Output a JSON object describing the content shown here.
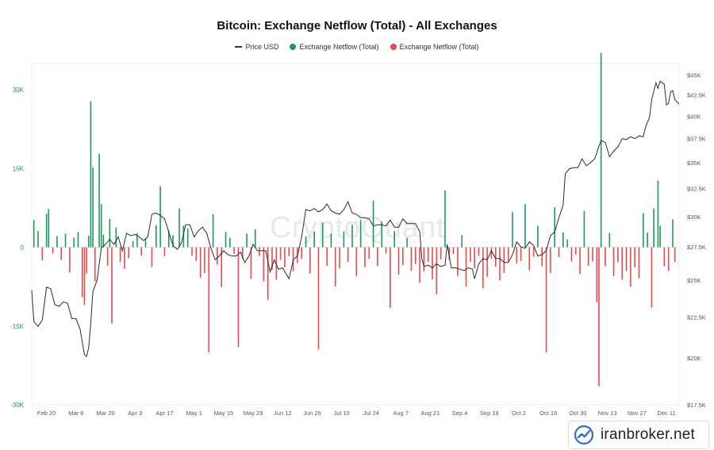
{
  "chart_data": {
    "type": "bar+line",
    "title": "Bitcoin: Exchange Netflow (Total) - All Exchanges",
    "legend": [
      {
        "name": "Price USD",
        "color": "#333333",
        "kind": "line"
      },
      {
        "name": "Exchange Netflow (Total)",
        "color": "#1a9a5c",
        "kind": "dot"
      },
      {
        "name": "Exchange Netflow (Total)",
        "color": "#e84a4a",
        "kind": "dot"
      }
    ],
    "x_start": "2023-02-13",
    "x_end": "2023-12-17",
    "x_ticks": [
      "Feb 20",
      "Mar 6",
      "Mar 20",
      "Apr 3",
      "Apr 17",
      "May 1",
      "May 15",
      "May 29",
      "Jun 12",
      "Jun 26",
      "Jul 10",
      "Jul 24",
      "Aug 7",
      "Aug 21",
      "Sep 4",
      "Sep 18",
      "Oct 2",
      "Oct 16",
      "Oct 30",
      "Nov 13",
      "Nov 27",
      "Dec 11"
    ],
    "y_left": {
      "range": [
        -30000,
        35000
      ],
      "ticks": [
        -30000,
        -15000,
        0,
        15000,
        30000
      ],
      "tick_labels": [
        "-30K",
        "-15K",
        "0",
        "15K",
        "30K"
      ],
      "color": "#1a9a5c"
    },
    "y_right": {
      "scale": "log",
      "range": [
        17500,
        46500
      ],
      "ticks": [
        17500,
        20000,
        22500,
        25000,
        27500,
        30000,
        32500,
        35000,
        37500,
        40000,
        42500,
        45000
      ],
      "tick_labels": [
        "$17.5K",
        "$20K",
        "$22.5K",
        "$25K",
        "$27.5K",
        "$30K",
        "$32.5K",
        "$35K",
        "$37.5K",
        "$40K",
        "$42.5K",
        "$45K"
      ]
    },
    "netflow": [
      [
        "2023-02-14",
        5200
      ],
      [
        "2023-02-16",
        3100
      ],
      [
        "2023-02-18",
        -2500
      ],
      [
        "2023-02-20",
        6400
      ],
      [
        "2023-02-21",
        7300
      ],
      [
        "2023-02-23",
        -1200
      ],
      [
        "2023-02-25",
        2100
      ],
      [
        "2023-02-27",
        -2400
      ],
      [
        "2023-03-01",
        2600
      ],
      [
        "2023-03-03",
        -4800
      ],
      [
        "2023-03-05",
        1800
      ],
      [
        "2023-03-07",
        2900
      ],
      [
        "2023-03-09",
        -9500
      ],
      [
        "2023-03-10",
        -11000
      ],
      [
        "2023-03-11",
        -5000
      ],
      [
        "2023-03-12",
        2200
      ],
      [
        "2023-03-13",
        27800
      ],
      [
        "2023-03-14",
        15200
      ],
      [
        "2023-03-15",
        -6500
      ],
      [
        "2023-03-17",
        17800
      ],
      [
        "2023-03-18",
        8200
      ],
      [
        "2023-03-19",
        2400
      ],
      [
        "2023-03-21",
        -3500
      ],
      [
        "2023-03-22",
        5400
      ],
      [
        "2023-03-23",
        -14500
      ],
      [
        "2023-03-25",
        3800
      ],
      [
        "2023-03-27",
        -2800
      ],
      [
        "2023-03-29",
        -4100
      ],
      [
        "2023-03-31",
        -2100
      ],
      [
        "2023-04-02",
        1200
      ],
      [
        "2023-04-04",
        2700
      ],
      [
        "2023-04-06",
        -1600
      ],
      [
        "2023-04-08",
        1600
      ],
      [
        "2023-04-11",
        -3800
      ],
      [
        "2023-04-13",
        4200
      ],
      [
        "2023-04-15",
        11600
      ],
      [
        "2023-04-17",
        -1700
      ],
      [
        "2023-04-19",
        3200
      ],
      [
        "2023-04-21",
        2300
      ],
      [
        "2023-04-24",
        7400
      ],
      [
        "2023-04-26",
        4100
      ],
      [
        "2023-04-28",
        3600
      ],
      [
        "2023-04-30",
        -1600
      ],
      [
        "2023-05-02",
        -2600
      ],
      [
        "2023-05-04",
        -5800
      ],
      [
        "2023-05-06",
        -4900
      ],
      [
        "2023-05-08",
        -20000
      ],
      [
        "2023-05-10",
        6300
      ],
      [
        "2023-05-12",
        -3300
      ],
      [
        "2023-05-14",
        -7600
      ],
      [
        "2023-05-16",
        2900
      ],
      [
        "2023-05-18",
        1800
      ],
      [
        "2023-05-20",
        -1300
      ],
      [
        "2023-05-22",
        -19000
      ],
      [
        "2023-05-24",
        -2200
      ],
      [
        "2023-05-26",
        2600
      ],
      [
        "2023-05-28",
        -6000
      ],
      [
        "2023-05-30",
        3400
      ],
      [
        "2023-06-01",
        -1700
      ],
      [
        "2023-06-03",
        -6500
      ],
      [
        "2023-06-05",
        -10000
      ],
      [
        "2023-06-07",
        -4300
      ],
      [
        "2023-06-09",
        -6200
      ],
      [
        "2023-06-11",
        -2400
      ],
      [
        "2023-06-13",
        -3800
      ],
      [
        "2023-06-15",
        -1700
      ],
      [
        "2023-06-17",
        -4600
      ],
      [
        "2023-06-19",
        -3000
      ],
      [
        "2023-06-21",
        -2200
      ],
      [
        "2023-06-23",
        2100
      ],
      [
        "2023-06-25",
        -5000
      ],
      [
        "2023-06-27",
        3000
      ],
      [
        "2023-06-29",
        -19500
      ],
      [
        "2023-07-01",
        4700
      ],
      [
        "2023-07-03",
        -3500
      ],
      [
        "2023-07-05",
        2600
      ],
      [
        "2023-07-07",
        -7500
      ],
      [
        "2023-07-09",
        -4000
      ],
      [
        "2023-07-11",
        3000
      ],
      [
        "2023-07-13",
        -2800
      ],
      [
        "2023-07-15",
        4300
      ],
      [
        "2023-07-17",
        -5500
      ],
      [
        "2023-07-19",
        5200
      ],
      [
        "2023-07-21",
        -3800
      ],
      [
        "2023-07-23",
        -2200
      ],
      [
        "2023-07-25",
        8900
      ],
      [
        "2023-07-27",
        -3600
      ],
      [
        "2023-07-29",
        4900
      ],
      [
        "2023-07-31",
        -1200
      ],
      [
        "2023-08-02",
        -11500
      ],
      [
        "2023-08-04",
        3100
      ],
      [
        "2023-08-06",
        -5200
      ],
      [
        "2023-08-08",
        -3400
      ],
      [
        "2023-08-10",
        1800
      ],
      [
        "2023-08-12",
        -4500
      ],
      [
        "2023-08-14",
        -3200
      ],
      [
        "2023-08-16",
        -6800
      ],
      [
        "2023-08-18",
        -4600
      ],
      [
        "2023-08-20",
        -2800
      ],
      [
        "2023-08-22",
        -6100
      ],
      [
        "2023-08-24",
        -9000
      ],
      [
        "2023-08-26",
        -2300
      ],
      [
        "2023-08-28",
        10800
      ],
      [
        "2023-08-30",
        -2400
      ],
      [
        "2023-09-01",
        -1300
      ],
      [
        "2023-09-03",
        -5500
      ],
      [
        "2023-09-05",
        2300
      ],
      [
        "2023-09-07",
        -7500
      ],
      [
        "2023-09-09",
        -2800
      ],
      [
        "2023-09-11",
        -4000
      ],
      [
        "2023-09-13",
        -1600
      ],
      [
        "2023-09-15",
        -7800
      ],
      [
        "2023-09-17",
        -5600
      ],
      [
        "2023-09-19",
        -2200
      ],
      [
        "2023-09-21",
        -3700
      ],
      [
        "2023-09-23",
        -6300
      ],
      [
        "2023-09-25",
        -4900
      ],
      [
        "2023-09-27",
        -2700
      ],
      [
        "2023-09-29",
        6700
      ],
      [
        "2023-10-01",
        -3100
      ],
      [
        "2023-10-03",
        -2600
      ],
      [
        "2023-10-05",
        8200
      ],
      [
        "2023-10-07",
        -4400
      ],
      [
        "2023-10-09",
        -1800
      ],
      [
        "2023-10-11",
        4100
      ],
      [
        "2023-10-13",
        -3600
      ],
      [
        "2023-10-15",
        -20000
      ],
      [
        "2023-10-17",
        -4900
      ],
      [
        "2023-10-19",
        7600
      ],
      [
        "2023-10-21",
        -1900
      ],
      [
        "2023-10-23",
        2800
      ],
      [
        "2023-10-25",
        1500
      ],
      [
        "2023-10-27",
        -2700
      ],
      [
        "2023-10-29",
        -1400
      ],
      [
        "2023-10-31",
        -5100
      ],
      [
        "2023-11-02",
        6900
      ],
      [
        "2023-11-04",
        -3500
      ],
      [
        "2023-11-06",
        -2700
      ],
      [
        "2023-11-08",
        -10500
      ],
      [
        "2023-11-09",
        -26500
      ],
      [
        "2023-11-10",
        37000
      ],
      [
        "2023-11-12",
        -3600
      ],
      [
        "2023-11-14",
        2700
      ],
      [
        "2023-11-16",
        -5500
      ],
      [
        "2023-11-18",
        -2900
      ],
      [
        "2023-11-20",
        -6200
      ],
      [
        "2023-11-22",
        -4500
      ],
      [
        "2023-11-24",
        -7500
      ],
      [
        "2023-11-26",
        -3800
      ],
      [
        "2023-11-28",
        -5900
      ],
      [
        "2023-11-30",
        6500
      ],
      [
        "2023-12-02",
        2800
      ],
      [
        "2023-12-04",
        -11500
      ],
      [
        "2023-12-05",
        7400
      ],
      [
        "2023-12-07",
        12700
      ],
      [
        "2023-12-08",
        4100
      ],
      [
        "2023-12-10",
        -3600
      ],
      [
        "2023-12-12",
        -4500
      ],
      [
        "2023-12-14",
        5300
      ],
      [
        "2023-12-15",
        -2800
      ]
    ],
    "price": [
      [
        "2023-02-13",
        24300
      ],
      [
        "2023-02-14",
        22200
      ],
      [
        "2023-02-16",
        21900
      ],
      [
        "2023-02-18",
        22300
      ],
      [
        "2023-02-20",
        24500
      ],
      [
        "2023-02-22",
        24400
      ],
      [
        "2023-02-24",
        23300
      ],
      [
        "2023-02-26",
        23200
      ],
      [
        "2023-02-28",
        23500
      ],
      [
        "2023-03-02",
        23400
      ],
      [
        "2023-03-04",
        22400
      ],
      [
        "2023-03-06",
        22400
      ],
      [
        "2023-03-08",
        21700
      ],
      [
        "2023-03-10",
        20200
      ],
      [
        "2023-03-11",
        20100
      ],
      [
        "2023-03-12",
        20600
      ],
      [
        "2023-03-13",
        22100
      ],
      [
        "2023-03-14",
        24200
      ],
      [
        "2023-03-16",
        25000
      ],
      [
        "2023-03-18",
        27400
      ],
      [
        "2023-03-20",
        27700
      ],
      [
        "2023-03-22",
        28100
      ],
      [
        "2023-03-24",
        27700
      ],
      [
        "2023-03-26",
        28300
      ],
      [
        "2023-03-28",
        27200
      ],
      [
        "2023-03-30",
        28600
      ],
      [
        "2023-04-01",
        28400
      ],
      [
        "2023-04-03",
        28500
      ],
      [
        "2023-04-05",
        28300
      ],
      [
        "2023-04-07",
        28000
      ],
      [
        "2023-04-09",
        28300
      ],
      [
        "2023-04-11",
        30200
      ],
      [
        "2023-04-13",
        30300
      ],
      [
        "2023-04-15",
        30100
      ],
      [
        "2023-04-17",
        29800
      ],
      [
        "2023-04-19",
        28700
      ],
      [
        "2023-04-21",
        27600
      ],
      [
        "2023-04-23",
        27300
      ],
      [
        "2023-04-25",
        27800
      ],
      [
        "2023-04-27",
        29300
      ],
      [
        "2023-04-29",
        29300
      ],
      [
        "2023-05-01",
        28300
      ],
      [
        "2023-05-03",
        28800
      ],
      [
        "2023-05-05",
        29100
      ],
      [
        "2023-05-07",
        28600
      ],
      [
        "2023-05-09",
        27400
      ],
      [
        "2023-05-11",
        26500
      ],
      [
        "2023-05-13",
        26800
      ],
      [
        "2023-05-15",
        27200
      ],
      [
        "2023-05-17",
        26900
      ],
      [
        "2023-05-19",
        26800
      ],
      [
        "2023-05-21",
        26800
      ],
      [
        "2023-05-23",
        27100
      ],
      [
        "2023-05-25",
        26300
      ],
      [
        "2023-05-27",
        26800
      ],
      [
        "2023-05-29",
        27700
      ],
      [
        "2023-05-31",
        27200
      ],
      [
        "2023-06-02",
        27200
      ],
      [
        "2023-06-04",
        27200
      ],
      [
        "2023-06-06",
        25600
      ],
      [
        "2023-06-08",
        26500
      ],
      [
        "2023-06-10",
        25800
      ],
      [
        "2023-06-12",
        25900
      ],
      [
        "2023-06-15",
        25100
      ],
      [
        "2023-06-17",
        26500
      ],
      [
        "2023-06-19",
        26800
      ],
      [
        "2023-06-21",
        28300
      ],
      [
        "2023-06-23",
        30600
      ],
      [
        "2023-06-25",
        30500
      ],
      [
        "2023-06-27",
        30700
      ],
      [
        "2023-06-29",
        30400
      ],
      [
        "2023-07-01",
        30600
      ],
      [
        "2023-07-03",
        31100
      ],
      [
        "2023-07-05",
        30500
      ],
      [
        "2023-07-07",
        30300
      ],
      [
        "2023-07-09",
        30200
      ],
      [
        "2023-07-11",
        30600
      ],
      [
        "2023-07-13",
        31300
      ],
      [
        "2023-07-15",
        30300
      ],
      [
        "2023-07-17",
        30200
      ],
      [
        "2023-07-19",
        29900
      ],
      [
        "2023-07-21",
        29900
      ],
      [
        "2023-07-23",
        29800
      ],
      [
        "2023-07-25",
        29200
      ],
      [
        "2023-07-27",
        29300
      ],
      [
        "2023-07-29",
        29300
      ],
      [
        "2023-07-31",
        29200
      ],
      [
        "2023-08-02",
        29700
      ],
      [
        "2023-08-04",
        29100
      ],
      [
        "2023-08-06",
        29100
      ],
      [
        "2023-08-08",
        29800
      ],
      [
        "2023-08-10",
        29400
      ],
      [
        "2023-08-12",
        29400
      ],
      [
        "2023-08-14",
        29400
      ],
      [
        "2023-08-16",
        28700
      ],
      [
        "2023-08-17",
        26600
      ],
      [
        "2023-08-18",
        26000
      ],
      [
        "2023-08-20",
        26100
      ],
      [
        "2023-08-22",
        25900
      ],
      [
        "2023-08-24",
        26200
      ],
      [
        "2023-08-26",
        26000
      ],
      [
        "2023-08-28",
        26100
      ],
      [
        "2023-08-29",
        27700
      ],
      [
        "2023-08-31",
        25900
      ],
      [
        "2023-09-02",
        25900
      ],
      [
        "2023-09-04",
        25800
      ],
      [
        "2023-09-06",
        25700
      ],
      [
        "2023-09-08",
        25900
      ],
      [
        "2023-09-10",
        25800
      ],
      [
        "2023-09-11",
        25100
      ],
      [
        "2023-09-13",
        26200
      ],
      [
        "2023-09-15",
        26600
      ],
      [
        "2023-09-17",
        26500
      ],
      [
        "2023-09-19",
        27200
      ],
      [
        "2023-09-21",
        26600
      ],
      [
        "2023-09-23",
        26600
      ],
      [
        "2023-09-25",
        26300
      ],
      [
        "2023-09-27",
        26300
      ],
      [
        "2023-09-29",
        26900
      ],
      [
        "2023-10-01",
        27900
      ],
      [
        "2023-10-03",
        27500
      ],
      [
        "2023-10-05",
        27400
      ],
      [
        "2023-10-07",
        27900
      ],
      [
        "2023-10-09",
        27600
      ],
      [
        "2023-10-11",
        26800
      ],
      [
        "2023-10-13",
        26900
      ],
      [
        "2023-10-15",
        27200
      ],
      [
        "2023-10-17",
        28400
      ],
      [
        "2023-10-19",
        28700
      ],
      [
        "2023-10-21",
        29900
      ],
      [
        "2023-10-23",
        31000
      ],
      [
        "2023-10-24",
        33900
      ],
      [
        "2023-10-26",
        34400
      ],
      [
        "2023-10-28",
        34500
      ],
      [
        "2023-10-30",
        34500
      ],
      [
        "2023-11-01",
        35400
      ],
      [
        "2023-11-03",
        34700
      ],
      [
        "2023-11-05",
        35000
      ],
      [
        "2023-11-07",
        35400
      ],
      [
        "2023-11-09",
        36700
      ],
      [
        "2023-11-10",
        37300
      ],
      [
        "2023-11-12",
        37100
      ],
      [
        "2023-11-14",
        35600
      ],
      [
        "2023-11-16",
        36200
      ],
      [
        "2023-11-18",
        36600
      ],
      [
        "2023-11-20",
        37500
      ],
      [
        "2023-11-22",
        37400
      ],
      [
        "2023-11-24",
        37700
      ],
      [
        "2023-11-26",
        37500
      ],
      [
        "2023-11-28",
        37800
      ],
      [
        "2023-11-30",
        37700
      ],
      [
        "2023-12-01",
        38700
      ],
      [
        "2023-12-03",
        39900
      ],
      [
        "2023-12-04",
        41900
      ],
      [
        "2023-12-06",
        44000
      ],
      [
        "2023-12-07",
        43300
      ],
      [
        "2023-12-08",
        44200
      ],
      [
        "2023-12-10",
        43800
      ],
      [
        "2023-12-11",
        41300
      ],
      [
        "2023-12-12",
        41500
      ],
      [
        "2023-12-13",
        42900
      ],
      [
        "2023-12-14",
        43000
      ],
      [
        "2023-12-15",
        41900
      ],
      [
        "2023-12-17",
        41400
      ]
    ]
  },
  "background_watermark": "CryptoQuant",
  "brand": {
    "name": "iranbroker.net",
    "icon": "chart-trend-logo-icon"
  }
}
